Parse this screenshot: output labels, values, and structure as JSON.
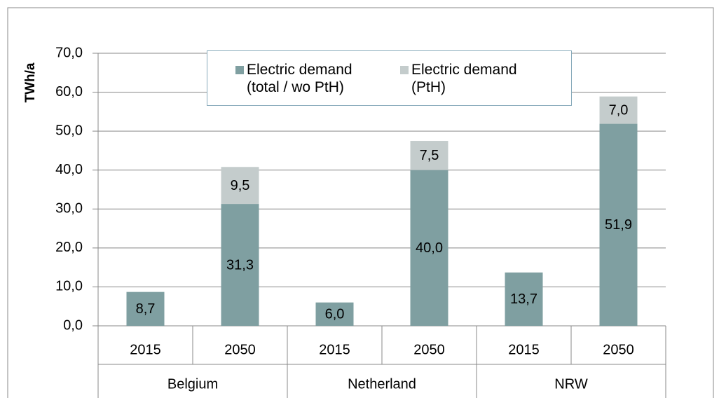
{
  "chart_data": {
    "type": "stacked_bar",
    "y_label": "TWh/a",
    "categories": [
      "2015",
      "2050",
      "2015",
      "2050",
      "2015",
      "2050"
    ],
    "groups": [
      "Belgium",
      "Netherland",
      "NRW"
    ],
    "series": [
      {
        "name": "Electric demand (total / wo PtH)",
        "color": "#7f9fa1",
        "values": [
          8.7,
          31.3,
          6.0,
          40.0,
          13.7,
          51.9
        ],
        "value_labels": [
          "8,7",
          "31,3",
          "6,0",
          "40,0",
          "13,7",
          "51,9"
        ]
      },
      {
        "name": "Electric demand (PtH)",
        "color": "#c4cccc",
        "values": [
          null,
          9.5,
          null,
          7.5,
          null,
          7.0
        ],
        "value_labels": [
          null,
          "9,5",
          null,
          "7,5",
          null,
          "7,0"
        ]
      }
    ],
    "ylim": [
      0,
      70
    ],
    "yticks": [
      {
        "value": 0,
        "label": "0,0"
      },
      {
        "value": 10,
        "label": "10,0"
      },
      {
        "value": 20,
        "label": "20,0"
      },
      {
        "value": 30,
        "label": "30,0"
      },
      {
        "value": 40,
        "label": "40,0"
      },
      {
        "value": 50,
        "label": "50,0"
      },
      {
        "value": 60,
        "label": "60,0"
      },
      {
        "value": 70,
        "label": "70,0"
      }
    ],
    "grid": true
  }
}
